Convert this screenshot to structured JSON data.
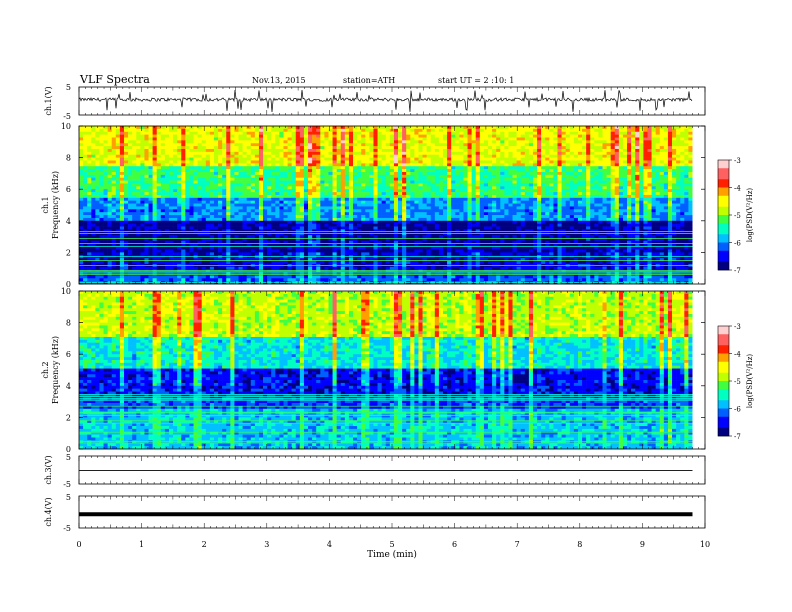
{
  "header": {
    "title": "VLF  Spectra",
    "date": "Nov.13, 2015",
    "station": "station=ATH",
    "start": "start  UT  =   2  :10: 1"
  },
  "panels": {
    "ch1_wave_label": "ch.1(V)",
    "ch1_spec_label_a": "ch.1",
    "ch1_spec_label_b": "Frequency  (kHz)",
    "ch2_spec_label_a": "ch.2",
    "ch2_spec_label_b": "Frequency  (kHz)",
    "ch3_wave_label": "ch.3(V)",
    "ch4_wave_label": "ch.4(V)",
    "colorbar_label": "log(PSD(V²/Hz)"
  },
  "colors": {
    "scale": [
      "#000080",
      "#0000ff",
      "#0060ff",
      "#00c0ff",
      "#00ffc0",
      "#40ff40",
      "#c0ff00",
      "#ffff00",
      "#ffa000",
      "#ff2000",
      "#ff6060",
      "#ffd0d0"
    ]
  },
  "chart_data": [
    {
      "type": "line",
      "panel": "ch.1 waveform",
      "ylabel": "ch.1(V)",
      "ylim": [
        -5,
        5
      ],
      "yticks": [
        "5",
        "-5"
      ],
      "description_values": {
        "baseline_v": 0.5,
        "noise_amplitude_v": 0.6,
        "spike_peak_v": 4.0
      },
      "x_range_min": [
        0,
        9.8
      ]
    },
    {
      "type": "heatmap",
      "panel": "ch.1 spectrogram",
      "ylabel": "Frequency  (kHz)",
      "ylim": [
        0,
        10
      ],
      "yticks": [
        "0",
        "2",
        "4",
        "6",
        "8",
        "10"
      ],
      "x_range_min": [
        0,
        9.8
      ],
      "psd_profile": {
        "0-0.5": -6.2,
        "0.5-2": -6.6,
        "2-4": -6.8,
        "4-5.5": -6.0,
        "5.5-7.5": -5.3,
        "7.5-10": -4.6
      },
      "colorbar": {
        "label": "log(PSD(V²/Hz)",
        "range": [
          -7,
          -3
        ],
        "ticks": [
          "-3",
          "-4",
          "-5",
          "-6",
          "-7"
        ]
      }
    },
    {
      "type": "heatmap",
      "panel": "ch.2 spectrogram",
      "ylabel": "Frequency  (kHz)",
      "ylim": [
        0,
        10
      ],
      "yticks": [
        "0",
        "2",
        "4",
        "6",
        "8",
        "10"
      ],
      "x_range_min": [
        0,
        9.8
      ],
      "psd_profile": {
        "0-2.5": -5.8,
        "2.5-3.5": -6.3,
        "3.5-5": -6.5,
        "5-7": -5.6,
        "7-10": -4.8
      },
      "colorbar": {
        "label": "log(PSD(V²/Hz)",
        "range": [
          -7,
          -3
        ],
        "ticks": [
          "-3",
          "-4",
          "-5",
          "-6",
          "-7"
        ]
      }
    },
    {
      "type": "line",
      "panel": "ch.3 waveform",
      "ylabel": "ch.3(V)",
      "ylim": [
        -5,
        5
      ],
      "yticks": [
        "5",
        "-5"
      ],
      "constant_v": -0.2,
      "x_range_min": [
        0,
        9.8
      ]
    },
    {
      "type": "line",
      "panel": "ch.4 waveform",
      "ylabel": "ch.4(V)",
      "ylim": [
        -5,
        5
      ],
      "yticks": [
        "5",
        "-5"
      ],
      "constant_v": -0.7,
      "x_range_min": [
        0,
        9.8
      ],
      "xlabel": "Time  (min)",
      "xlim": [
        0,
        10
      ],
      "xticks": [
        "0",
        "1",
        "2",
        "3",
        "4",
        "5",
        "6",
        "7",
        "8",
        "9",
        "10"
      ]
    }
  ]
}
